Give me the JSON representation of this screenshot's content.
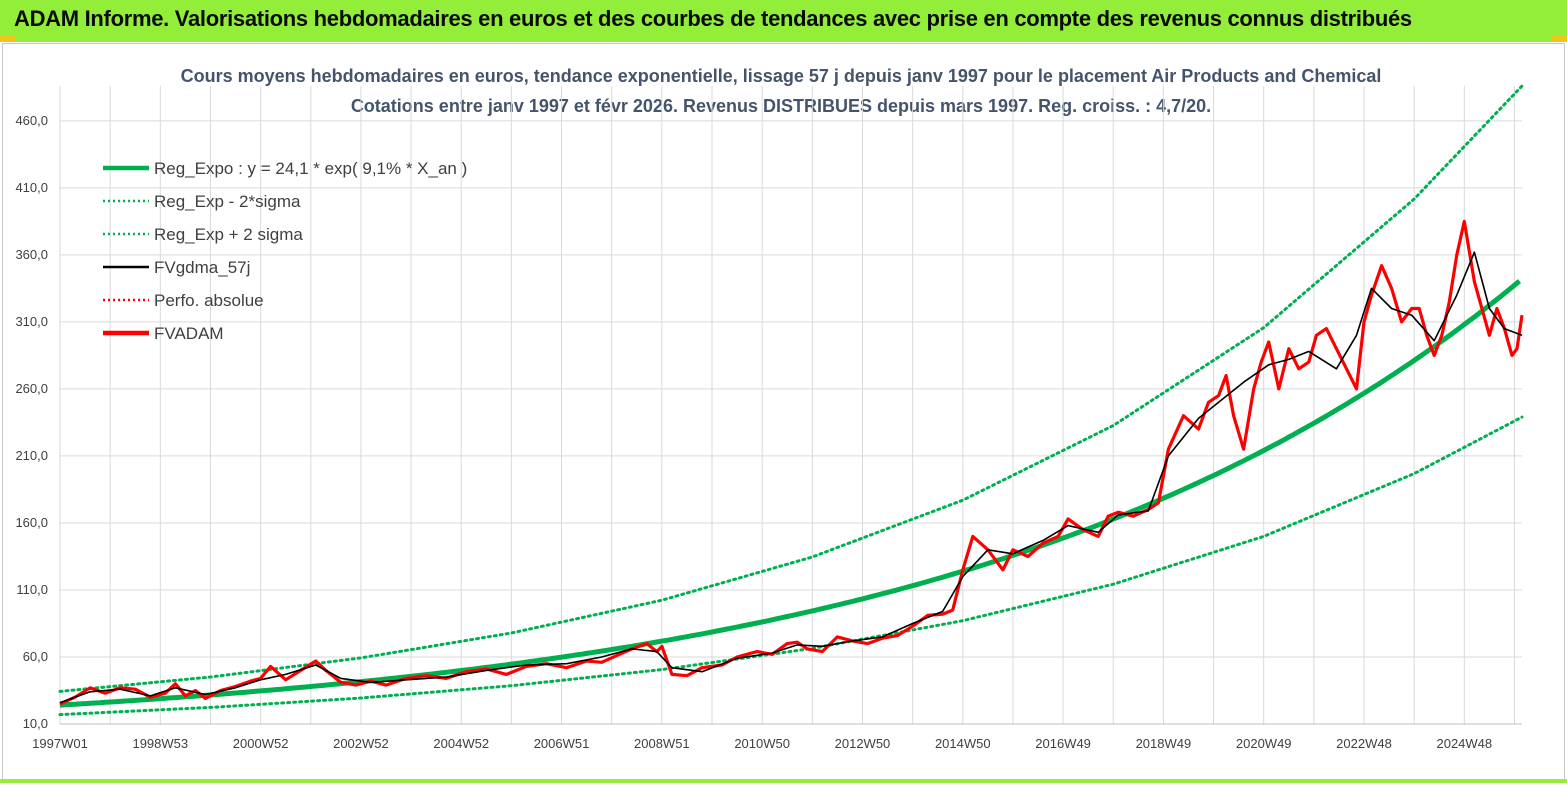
{
  "header": {
    "title": "ADAM Informe. Valorisations hebdomadaires en euros et des courbes de tendances avec prise en compte des revenus connus distribués"
  },
  "colors": {
    "banner": "#93ee3a",
    "regression": "#00b050",
    "smooth": "#000000",
    "price": "#ff0000",
    "grid": "#d9d9d9"
  },
  "chart_data": {
    "type": "line",
    "title_line1": "Cours moyens hebdomadaires en euros, tendance exponentielle, lissage 57 j depuis janv 1997  pour le placement Air Products and Chemical",
    "title_line2": "Cotations entre janv 1997 et févr 2026. Revenus DISTRIBUES depuis mars 1997. Reg. croiss. : 4,7/20.",
    "xlabel": "",
    "ylabel": "",
    "ylim": [
      10,
      486
    ],
    "xlim": [
      1997.0,
      2026.15
    ],
    "grid": true,
    "legend_position": "top-left",
    "y_ticks": [
      "460,0",
      "410,0",
      "360,0",
      "310,0",
      "260,0",
      "210,0",
      "160,0",
      "110,0",
      "60,0",
      "10,0"
    ],
    "y_tick_values": [
      460,
      410,
      360,
      310,
      260,
      210,
      160,
      110,
      60,
      10
    ],
    "x_ticks": [
      "1997W01",
      "1998W53",
      "2000W52",
      "2002W52",
      "2004W52",
      "2006W51",
      "2008W51",
      "2010W50",
      "2012W50",
      "2014W50",
      "2016W49",
      "2018W49",
      "2020W49",
      "2022W48",
      "2024W48"
    ],
    "x_tick_values": [
      1997.0,
      1999.0,
      2001.0,
      2003.0,
      2005.0,
      2007.0,
      2009.0,
      2011.0,
      2013.0,
      2015.0,
      2017.0,
      2019.0,
      2021.0,
      2023.0,
      2025.0
    ],
    "regression": {
      "a": 24.1,
      "rate": 0.091
    },
    "legend": [
      {
        "label": "Reg_Expo : y = 24,1 * exp( 9,1% *  X_an )",
        "style": "thick",
        "color": "#00b050"
      },
      {
        "label": "Reg_Exp - 2*sigma",
        "style": "dotted",
        "color": "#00b050"
      },
      {
        "label": "Reg_Exp + 2 sigma",
        "style": "dotted",
        "color": "#00b050"
      },
      {
        "label": "FVgdma_57j",
        "style": "solid",
        "color": "#000000"
      },
      {
        "label": "Perfo. absolue",
        "style": "dotted",
        "color": "#ff0000"
      },
      {
        "label": "FVADAM",
        "style": "thick",
        "color": "#ff0000"
      }
    ],
    "series": [
      {
        "name": "Reg_Exp - 2*sigma",
        "x": [
          1997.0,
          2000.0,
          2003.0,
          2006.0,
          2009.0,
          2012.0,
          2015.0,
          2018.0,
          2021.0,
          2024.0,
          2026.15
        ],
        "values": [
          17.0,
          22.4,
          29.4,
          38.6,
          50.6,
          66.4,
          87.1,
          114.3,
          150.0,
          196.8,
          239.0
        ]
      },
      {
        "name": "Reg_Exp + 2 sigma",
        "x": [
          1997.0,
          2000.0,
          2003.0,
          2006.0,
          2009.0,
          2012.0,
          2015.0,
          2018.0,
          2021.0,
          2024.0,
          2026.15
        ],
        "values": [
          34.3,
          45.1,
          59.3,
          77.9,
          102.4,
          134.6,
          177.0,
          232.6,
          305.7,
          401.7,
          486.0
        ]
      },
      {
        "name": "FVADAM",
        "x": [
          1997.0,
          1997.3,
          1997.6,
          1997.9,
          1998.2,
          1998.5,
          1998.8,
          1999.1,
          1999.3,
          1999.5,
          1999.7,
          1999.9,
          2000.2,
          2000.5,
          2000.8,
          2001.0,
          2001.2,
          2001.5,
          2001.8,
          2002.1,
          2002.3,
          2002.6,
          2002.9,
          2003.2,
          2003.5,
          2003.9,
          2004.3,
          2004.7,
          2005.1,
          2005.5,
          2005.9,
          2006.3,
          2006.7,
          2007.1,
          2007.5,
          2007.8,
          2008.1,
          2008.4,
          2008.7,
          2008.9,
          2009.0,
          2009.2,
          2009.5,
          2009.8,
          2010.2,
          2010.5,
          2010.9,
          2011.2,
          2011.5,
          2011.7,
          2011.9,
          2012.2,
          2012.5,
          2012.8,
          2013.1,
          2013.4,
          2013.7,
          2014.0,
          2014.3,
          2014.6,
          2014.8,
          2015.0,
          2015.2,
          2015.5,
          2015.8,
          2016.0,
          2016.3,
          2016.6,
          2016.9,
          2017.1,
          2017.4,
          2017.7,
          2017.9,
          2018.1,
          2018.4,
          2018.7,
          2018.9,
          2019.1,
          2019.4,
          2019.7,
          2019.9,
          2020.1,
          2020.25,
          2020.4,
          2020.6,
          2020.8,
          2020.95,
          2021.1,
          2021.3,
          2021.5,
          2021.7,
          2021.9,
          2022.05,
          2022.25,
          2022.45,
          2022.65,
          2022.85,
          2023.0,
          2023.15,
          2023.35,
          2023.55,
          2023.75,
          2023.95,
          2024.1,
          2024.25,
          2024.4,
          2024.55,
          2024.7,
          2024.85,
          2025.0,
          2025.2,
          2025.35,
          2025.5,
          2025.65,
          2025.8,
          2025.95,
          2026.05,
          2026.15
        ],
        "values": [
          25,
          30,
          37,
          33,
          37,
          36,
          30,
          33,
          40,
          31,
          35,
          29,
          35,
          38,
          42,
          44,
          53,
          43,
          50,
          57,
          50,
          41,
          39,
          42,
          39,
          44,
          46,
          44,
          49,
          51,
          47,
          53,
          55,
          52,
          57,
          56,
          61,
          66,
          70,
          64,
          68,
          47,
          46,
          52,
          54,
          60,
          64,
          62,
          70,
          71,
          66,
          64,
          75,
          72,
          70,
          74,
          76,
          83,
          91,
          92,
          95,
          125,
          150,
          140,
          125,
          140,
          135,
          145,
          150,
          163,
          155,
          150,
          165,
          168,
          165,
          170,
          175,
          215,
          240,
          230,
          250,
          255,
          270,
          240,
          215,
          260,
          280,
          295,
          260,
          290,
          275,
          280,
          300,
          305,
          290,
          275,
          260,
          310,
          330,
          352,
          335,
          310,
          320,
          320,
          300,
          285,
          300,
          325,
          360,
          385,
          340,
          320,
          300,
          320,
          305,
          285,
          290,
          315
        ],
        "color": "#ff0000"
      },
      {
        "name": "FVgdma_57j",
        "x": [
          1997.0,
          1997.6,
          1998.2,
          1998.8,
          1999.3,
          1999.9,
          2000.5,
          2001.0,
          2001.5,
          2002.1,
          2002.6,
          2003.2,
          2003.9,
          2004.7,
          2005.5,
          2006.3,
          2007.1,
          2007.8,
          2008.4,
          2008.9,
          2009.2,
          2009.8,
          2010.5,
          2011.2,
          2011.7,
          2012.2,
          2012.8,
          2013.4,
          2014.0,
          2014.6,
          2015.0,
          2015.5,
          2016.0,
          2016.6,
          2017.1,
          2017.7,
          2018.1,
          2018.7,
          2019.1,
          2019.7,
          2020.1,
          2020.6,
          2021.1,
          2021.5,
          2021.9,
          2022.45,
          2022.85,
          2023.15,
          2023.55,
          2023.95,
          2024.4,
          2024.85,
          2025.2,
          2025.5,
          2025.8,
          2026.15
        ],
        "values": [
          26,
          34,
          36,
          31,
          37,
          32,
          37,
          43,
          47,
          54,
          44,
          41,
          43,
          45,
          50,
          54,
          55,
          60,
          66,
          64,
          52,
          49,
          59,
          63,
          69,
          68,
          72,
          75,
          85,
          94,
          120,
          140,
          137,
          147,
          158,
          153,
          166,
          169,
          210,
          238,
          250,
          265,
          278,
          282,
          288,
          275,
          300,
          335,
          320,
          315,
          296,
          330,
          362,
          320,
          305,
          300
        ],
        "color": "#000000"
      }
    ]
  }
}
